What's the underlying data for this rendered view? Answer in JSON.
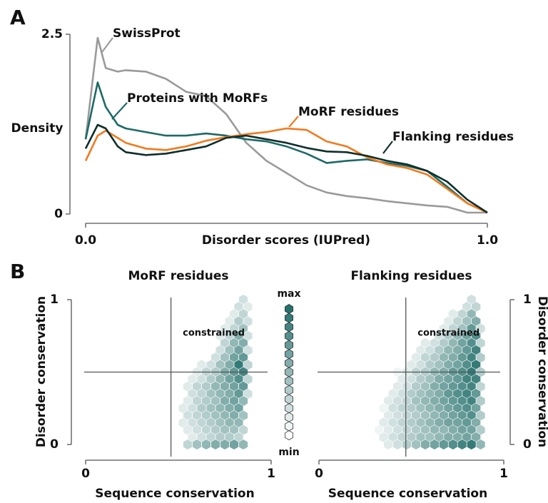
{
  "panel_labels": [
    "A",
    "B"
  ],
  "chart_data": [
    {
      "type": "line",
      "xlabel": "Disorder scores (IUPred)",
      "ylabel": "Density",
      "x": [
        0,
        0.03,
        0.05,
        0.08,
        0.1,
        0.15,
        0.2,
        0.25,
        0.3,
        0.35,
        0.4,
        0.45,
        0.5,
        0.55,
        0.6,
        0.65,
        0.7,
        0.75,
        0.8,
        0.85,
        0.9,
        0.95,
        1.0
      ],
      "series": [
        {
          "name": "SwissProt",
          "color": "#9a9a9a",
          "values": [
            1.04,
            2.45,
            2.03,
            1.98,
            2.0,
            1.98,
            1.88,
            1.7,
            1.64,
            1.39,
            0.99,
            0.74,
            0.57,
            0.4,
            0.3,
            0.25,
            0.22,
            0.18,
            0.15,
            0.12,
            0.1,
            0.02,
            0.02
          ]
        },
        {
          "name": "Proteins with MoRFs",
          "color": "#1d6a66",
          "values": [
            1.04,
            1.83,
            1.49,
            1.24,
            1.19,
            1.14,
            1.09,
            1.09,
            1.12,
            1.09,
            1.04,
            1.01,
            0.94,
            0.84,
            0.71,
            0.74,
            0.76,
            0.71,
            0.67,
            0.6,
            0.38,
            0.15,
            0.02
          ]
        },
        {
          "name": "MoRF residues",
          "color": "#f27a1f",
          "values": [
            0.74,
            1.09,
            1.16,
            1.06,
            0.99,
            0.91,
            0.89,
            0.94,
            1.02,
            1.07,
            1.11,
            1.14,
            1.19,
            1.17,
            1.01,
            0.94,
            0.79,
            0.69,
            0.64,
            0.55,
            0.35,
            0.15,
            0.02
          ]
        },
        {
          "name": "Flanking residues",
          "color": "#0e2f2b",
          "values": [
            0.91,
            1.24,
            1.19,
            0.94,
            0.86,
            0.82,
            0.84,
            0.89,
            0.94,
            1.06,
            1.09,
            1.04,
            0.99,
            0.92,
            0.87,
            0.86,
            0.81,
            0.74,
            0.69,
            0.6,
            0.45,
            0.2,
            0.02
          ]
        }
      ],
      "xlim": [
        0,
        1
      ],
      "ylim": [
        0,
        2.5
      ],
      "xticks": [
        {
          "value": 0,
          "label": "0.0"
        },
        {
          "value": 1,
          "label": "1.0"
        }
      ],
      "yticks": [
        0,
        2.5
      ]
    },
    {
      "type": "hexbin",
      "title": "MoRF residues",
      "xlabel": "Sequence conservation",
      "ylabel": "Disorder conservation",
      "y_axis_side": "left",
      "annotation": "constrained",
      "color": "#24706c",
      "clim": [
        0,
        14
      ],
      "vlines": [
        0.46
      ],
      "hlines": [
        0.5
      ],
      "xlim": [
        0,
        1
      ],
      "ylim": [
        0,
        1
      ],
      "xticks": [
        0,
        1
      ],
      "yticks": [
        0,
        1
      ],
      "colorbar": {
        "max_label": "max",
        "min_label": "min"
      },
      "rows": [
        {
          "y": 1.0,
          "x": [
            0.85
          ],
          "values": [
            3
          ]
        },
        {
          "y": 0.95,
          "x": [
            0.825,
            0.875
          ],
          "values": [
            3,
            2
          ]
        },
        {
          "y": 0.9,
          "x": [
            0.8,
            0.85
          ],
          "values": [
            2,
            4
          ]
        },
        {
          "y": 0.85,
          "x": [
            0.775,
            0.825,
            0.875
          ],
          "values": [
            2,
            5,
            3
          ]
        },
        {
          "y": 0.8,
          "x": [
            0.75,
            0.8,
            0.85
          ],
          "values": [
            2,
            4,
            6
          ]
        },
        {
          "y": 0.75,
          "x": [
            0.725,
            0.775,
            0.825,
            0.875
          ],
          "values": [
            2,
            4,
            8,
            3
          ]
        },
        {
          "y": 0.7,
          "x": [
            0.75,
            0.8,
            0.85
          ],
          "values": [
            4,
            7,
            8
          ]
        },
        {
          "y": 0.65,
          "x": [
            0.725,
            0.775,
            0.825,
            0.875
          ],
          "values": [
            3,
            6,
            9,
            3
          ]
        },
        {
          "y": 0.6,
          "x": [
            0.7,
            0.75,
            0.8,
            0.85
          ],
          "values": [
            3,
            6,
            9,
            10
          ]
        },
        {
          "y": 0.55,
          "x": [
            0.625,
            0.675,
            0.725,
            0.775,
            0.825,
            0.875
          ],
          "values": [
            2,
            3,
            6,
            8,
            13,
            4
          ]
        },
        {
          "y": 0.5,
          "x": [
            0.6,
            0.65,
            0.7,
            0.75,
            0.8,
            0.85
          ],
          "values": [
            2,
            4,
            5,
            8,
            10,
            12
          ]
        },
        {
          "y": 0.45,
          "x": [
            0.575,
            0.625,
            0.675,
            0.725,
            0.775,
            0.825,
            0.875
          ],
          "values": [
            2,
            3,
            5,
            7,
            9,
            11,
            4
          ]
        },
        {
          "y": 0.4,
          "x": [
            0.55,
            0.6,
            0.65,
            0.7,
            0.75,
            0.8,
            0.85
          ],
          "values": [
            2,
            4,
            5,
            7,
            8,
            9,
            10
          ]
        },
        {
          "y": 0.35,
          "x": [
            0.575,
            0.625,
            0.675,
            0.725,
            0.775,
            0.825,
            0.875
          ],
          "values": [
            3,
            4,
            6,
            7,
            8,
            10,
            3
          ]
        },
        {
          "y": 0.3,
          "x": [
            0.55,
            0.6,
            0.65,
            0.7,
            0.75,
            0.8,
            0.85
          ],
          "values": [
            2,
            4,
            5,
            6,
            8,
            9,
            7
          ]
        },
        {
          "y": 0.25,
          "x": [
            0.525,
            0.575,
            0.625,
            0.675,
            0.725,
            0.775,
            0.825
          ],
          "values": [
            2,
            3,
            5,
            6,
            7,
            8,
            9
          ]
        },
        {
          "y": 0.2,
          "x": [
            0.55,
            0.6,
            0.65,
            0.7,
            0.75,
            0.8,
            0.85
          ],
          "values": [
            3,
            4,
            5,
            6,
            7,
            8,
            6
          ]
        },
        {
          "y": 0.15,
          "x": [
            0.525,
            0.575,
            0.625,
            0.675,
            0.725,
            0.775,
            0.825
          ],
          "values": [
            2,
            3,
            4,
            5,
            6,
            7,
            7
          ]
        },
        {
          "y": 0.1,
          "x": [
            0.55,
            0.6,
            0.65,
            0.7,
            0.75,
            0.8,
            0.85
          ],
          "values": [
            2,
            3,
            4,
            5,
            6,
            6,
            4
          ]
        },
        {
          "y": 0.05,
          "x": [
            0.575,
            0.625,
            0.675,
            0.725,
            0.775,
            0.825
          ],
          "values": [
            2,
            3,
            4,
            5,
            5,
            4
          ]
        },
        {
          "y": 0.0,
          "x": [
            0.55,
            0.6,
            0.65,
            0.7,
            0.75,
            0.8,
            0.85
          ],
          "values": [
            4,
            6,
            7,
            8,
            8,
            9,
            7
          ]
        }
      ]
    },
    {
      "type": "hexbin",
      "title": "Flanking residues",
      "xlabel": "Sequence conservation",
      "ylabel": "Disorder conservation",
      "y_axis_side": "right",
      "annotation": "constrained",
      "color": "#24706c",
      "clim": [
        0,
        14
      ],
      "vlines": [
        0.47
      ],
      "hlines": [
        0.5
      ],
      "xlim": [
        0,
        1
      ],
      "ylim": [
        0,
        1
      ],
      "xticks": [
        0,
        1
      ],
      "yticks": [
        0,
        1
      ],
      "rows": [
        {
          "y": 1.0,
          "x": [
            0.825
          ],
          "values": [
            3
          ]
        },
        {
          "y": 0.95,
          "x": [
            0.8,
            0.85
          ],
          "values": [
            3,
            4
          ]
        },
        {
          "y": 0.9,
          "x": [
            0.725,
            0.775,
            0.825
          ],
          "values": [
            2,
            4,
            7
          ]
        },
        {
          "y": 0.85,
          "x": [
            0.7,
            0.75,
            0.8,
            0.85
          ],
          "values": [
            2,
            4,
            6,
            8
          ]
        },
        {
          "y": 0.8,
          "x": [
            0.675,
            0.725,
            0.775,
            0.825,
            0.875
          ],
          "values": [
            2,
            4,
            6,
            10,
            3
          ]
        },
        {
          "y": 0.75,
          "x": [
            0.65,
            0.7,
            0.75,
            0.8,
            0.85
          ],
          "values": [
            3,
            5,
            7,
            9,
            11
          ]
        },
        {
          "y": 0.7,
          "x": [
            0.575,
            0.625,
            0.675,
            0.725,
            0.775,
            0.825,
            0.875
          ],
          "values": [
            2,
            3,
            5,
            7,
            9,
            11,
            4
          ]
        },
        {
          "y": 0.65,
          "x": [
            0.55,
            0.6,
            0.65,
            0.7,
            0.75,
            0.8,
            0.85
          ],
          "values": [
            2,
            3,
            5,
            7,
            8,
            10,
            12
          ]
        },
        {
          "y": 0.6,
          "x": [
            0.525,
            0.575,
            0.625,
            0.675,
            0.725,
            0.775,
            0.825,
            0.875
          ],
          "values": [
            2,
            4,
            5,
            7,
            8,
            10,
            12,
            5
          ]
        },
        {
          "y": 0.55,
          "x": [
            0.5,
            0.55,
            0.6,
            0.65,
            0.7,
            0.75,
            0.8,
            0.85
          ],
          "values": [
            2,
            3,
            5,
            6,
            8,
            9,
            11,
            13
          ]
        },
        {
          "y": 0.5,
          "x": [
            0.425,
            0.475,
            0.525,
            0.575,
            0.625,
            0.675,
            0.725,
            0.775,
            0.825,
            0.875
          ],
          "values": [
            1,
            2,
            4,
            5,
            7,
            8,
            10,
            11,
            13,
            5
          ]
        },
        {
          "y": 0.45,
          "x": [
            0.45,
            0.5,
            0.55,
            0.6,
            0.65,
            0.7,
            0.75,
            0.8,
            0.85
          ],
          "values": [
            2,
            3,
            5,
            6,
            8,
            9,
            10,
            12,
            12
          ]
        },
        {
          "y": 0.4,
          "x": [
            0.425,
            0.475,
            0.525,
            0.575,
            0.625,
            0.675,
            0.725,
            0.775,
            0.825,
            0.875
          ],
          "values": [
            2,
            3,
            5,
            6,
            8,
            9,
            10,
            11,
            12,
            4
          ]
        },
        {
          "y": 0.35,
          "x": [
            0.4,
            0.45,
            0.5,
            0.55,
            0.6,
            0.65,
            0.7,
            0.75,
            0.8,
            0.85
          ],
          "values": [
            2,
            3,
            5,
            6,
            7,
            8,
            10,
            11,
            12,
            10
          ]
        },
        {
          "y": 0.3,
          "x": [
            0.375,
            0.425,
            0.475,
            0.525,
            0.575,
            0.625,
            0.675,
            0.725,
            0.775,
            0.825,
            0.875
          ],
          "values": [
            2,
            3,
            4,
            6,
            7,
            8,
            9,
            10,
            11,
            12,
            5
          ]
        },
        {
          "y": 0.25,
          "x": [
            0.35,
            0.4,
            0.45,
            0.5,
            0.55,
            0.6,
            0.65,
            0.7,
            0.75,
            0.8,
            0.85
          ],
          "values": [
            1,
            3,
            4,
            5,
            6,
            7,
            8,
            9,
            10,
            11,
            9
          ]
        },
        {
          "y": 0.2,
          "x": [
            0.375,
            0.425,
            0.475,
            0.525,
            0.575,
            0.625,
            0.675,
            0.725,
            0.775,
            0.825,
            0.875
          ],
          "values": [
            2,
            3,
            4,
            5,
            6,
            7,
            8,
            9,
            10,
            11,
            5
          ]
        },
        {
          "y": 0.15,
          "x": [
            0.35,
            0.4,
            0.45,
            0.5,
            0.55,
            0.6,
            0.65,
            0.7,
            0.75,
            0.8,
            0.85
          ],
          "values": [
            2,
            3,
            4,
            5,
            6,
            7,
            8,
            9,
            9,
            10,
            8
          ]
        },
        {
          "y": 0.1,
          "x": [
            0.325,
            0.375,
            0.425,
            0.475,
            0.525,
            0.575,
            0.625,
            0.675,
            0.725,
            0.775,
            0.825,
            0.875
          ],
          "values": [
            1,
            2,
            3,
            4,
            5,
            6,
            7,
            7,
            8,
            9,
            9,
            5
          ]
        },
        {
          "y": 0.05,
          "x": [
            0.35,
            0.4,
            0.45,
            0.5,
            0.55,
            0.6,
            0.65,
            0.7,
            0.75,
            0.8,
            0.85
          ],
          "values": [
            2,
            3,
            4,
            5,
            6,
            6,
            7,
            8,
            8,
            9,
            8
          ]
        },
        {
          "y": 0.0,
          "x": [
            0.375,
            0.425,
            0.475,
            0.525,
            0.575,
            0.625,
            0.675,
            0.725,
            0.775,
            0.825,
            0.875
          ],
          "values": [
            2,
            3,
            5,
            6,
            8,
            9,
            10,
            11,
            12,
            13,
            7
          ]
        }
      ]
    }
  ]
}
